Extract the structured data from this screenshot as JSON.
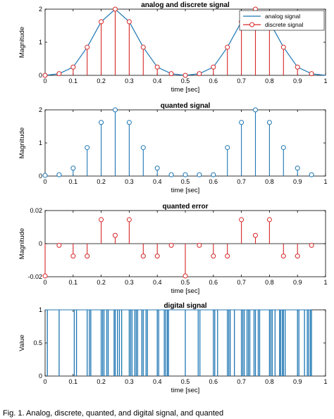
{
  "figure": {
    "caption": "Fig. 1. Analog, discrete, quanted, and digital signal, and quanted"
  },
  "colors": {
    "blue": "#1f77b4",
    "red": "#d62728",
    "axis": "#000000"
  },
  "chart_data": [
    {
      "type": "stem",
      "title": "analog and discrete signal",
      "xlabel": "time [sec]",
      "ylabel": "Magnitude",
      "xlim": [
        0,
        1
      ],
      "ylim": [
        0,
        2
      ],
      "xticks": [
        "0",
        "0.1",
        "0.2",
        "0.3",
        "0.4",
        "0.5",
        "0.6",
        "0.7",
        "0.8",
        "0.9",
        "1"
      ],
      "yticks": [
        "0",
        "1",
        "2"
      ],
      "legend": {
        "placement": "top-right",
        "entries": [
          "analog signal",
          "discrete signal"
        ]
      },
      "series": [
        {
          "name": "analog signal",
          "kind": "line",
          "color": "blue",
          "x": [
            0,
            0.05,
            0.1,
            0.15,
            0.2,
            0.25,
            0.3,
            0.35,
            0.4,
            0.45,
            0.5,
            0.55,
            0.6,
            0.65,
            0.7,
            0.75,
            0.8,
            0.85,
            0.9,
            0.95,
            1.0
          ],
          "values": [
            0,
            0.05,
            0.25,
            0.85,
            1.62,
            2.0,
            1.62,
            0.85,
            0.25,
            0.05,
            0,
            0.05,
            0.25,
            0.85,
            1.62,
            2.0,
            1.62,
            0.85,
            0.25,
            0.05,
            0
          ]
        },
        {
          "name": "discrete signal",
          "kind": "stem",
          "color": "red",
          "x": [
            0,
            0.05,
            0.1,
            0.15,
            0.2,
            0.25,
            0.3,
            0.35,
            0.4,
            0.45,
            0.5,
            0.55,
            0.6,
            0.65,
            0.7,
            0.75,
            0.8,
            0.85,
            0.9,
            0.95
          ],
          "values": [
            0,
            0.05,
            0.25,
            0.85,
            1.62,
            2.0,
            1.62,
            0.85,
            0.25,
            0.05,
            0,
            0.05,
            0.25,
            0.85,
            1.62,
            2.0,
            1.62,
            0.85,
            0.25,
            0.05
          ]
        }
      ]
    },
    {
      "type": "stem",
      "title": "quanted signal",
      "xlabel": "time [sec]",
      "ylabel": "Magnitude",
      "xlim": [
        0,
        1
      ],
      "ylim": [
        0,
        2
      ],
      "xticks": [
        "0",
        "0.1",
        "0.2",
        "0.3",
        "0.4",
        "0.5",
        "0.6",
        "0.7",
        "0.8",
        "0.9",
        "1"
      ],
      "yticks": [
        "0",
        "1",
        "2"
      ],
      "series": [
        {
          "kind": "stem",
          "color": "blue",
          "x": [
            0,
            0.05,
            0.1,
            0.15,
            0.2,
            0.25,
            0.3,
            0.35,
            0.4,
            0.45,
            0.5,
            0.55,
            0.6,
            0.65,
            0.7,
            0.75,
            0.8,
            0.85,
            0.9,
            0.95
          ],
          "values": [
            0.02,
            0.04,
            0.24,
            0.86,
            1.62,
            2.0,
            1.62,
            0.86,
            0.24,
            0.04,
            0.04,
            0.04,
            0.04,
            0.86,
            1.62,
            2.0,
            1.62,
            0.86,
            0.24,
            0.04
          ]
        }
      ]
    },
    {
      "type": "stem",
      "title": "quanted error",
      "xlabel": "time [sec]",
      "ylabel": "Magnitude",
      "xlim": [
        0,
        1
      ],
      "ylim": [
        -0.02,
        0.02
      ],
      "xticks": [
        "0",
        "0.1",
        "0.2",
        "0.3",
        "0.4",
        "0.5",
        "0.6",
        "0.7",
        "0.8",
        "0.9",
        "1"
      ],
      "yticks": [
        "-0.02",
        "0",
        "0.02"
      ],
      "series": [
        {
          "kind": "stem",
          "color": "red",
          "x": [
            0,
            0.05,
            0.1,
            0.15,
            0.2,
            0.25,
            0.3,
            0.35,
            0.4,
            0.45,
            0.5,
            0.55,
            0.6,
            0.65,
            0.7,
            0.75,
            0.8,
            0.85,
            0.9,
            0.95
          ],
          "values": [
            -0.0195,
            -0.001,
            -0.0075,
            -0.0075,
            0.0145,
            0.005,
            0.0145,
            -0.0075,
            -0.0075,
            -0.001,
            -0.0195,
            -0.001,
            -0.0075,
            -0.0075,
            0.0145,
            0.005,
            0.0145,
            -0.0075,
            -0.0075,
            -0.001
          ]
        }
      ]
    },
    {
      "type": "bar",
      "title": "digital signal",
      "xlabel": "time [sec]",
      "ylabel": "Value",
      "xlim": [
        0,
        1
      ],
      "ylim": [
        0,
        1
      ],
      "xticks": [
        "0",
        "0.1",
        "0.2",
        "0.3",
        "0.4",
        "0.5",
        "0.6",
        "0.7",
        "0.8",
        "0.9",
        "1"
      ],
      "yticks": [
        "0",
        "0.5",
        "1"
      ],
      "series": [
        {
          "kind": "pulse-lines",
          "color": "blue",
          "x": [
            0.008,
            0.05,
            0.104,
            0.112,
            0.15,
            0.158,
            0.163,
            0.2,
            0.205,
            0.21,
            0.22,
            0.225,
            0.246,
            0.25,
            0.258,
            0.265,
            0.273,
            0.3,
            0.305,
            0.31,
            0.32,
            0.325,
            0.33,
            0.345,
            0.35,
            0.36,
            0.365,
            0.4,
            0.405,
            0.425,
            0.43,
            0.436,
            0.44,
            0.5,
            0.546,
            0.552,
            0.6,
            0.605,
            0.615,
            0.65,
            0.655,
            0.66,
            0.675,
            0.7,
            0.705,
            0.71,
            0.72,
            0.725,
            0.73,
            0.745,
            0.75,
            0.76,
            0.765,
            0.8,
            0.805,
            0.81,
            0.82,
            0.836,
            0.84,
            0.846,
            0.85,
            0.856,
            0.9,
            0.905,
            0.925,
            0.935,
            0.94,
            0.946,
            0.95
          ]
        }
      ]
    }
  ]
}
